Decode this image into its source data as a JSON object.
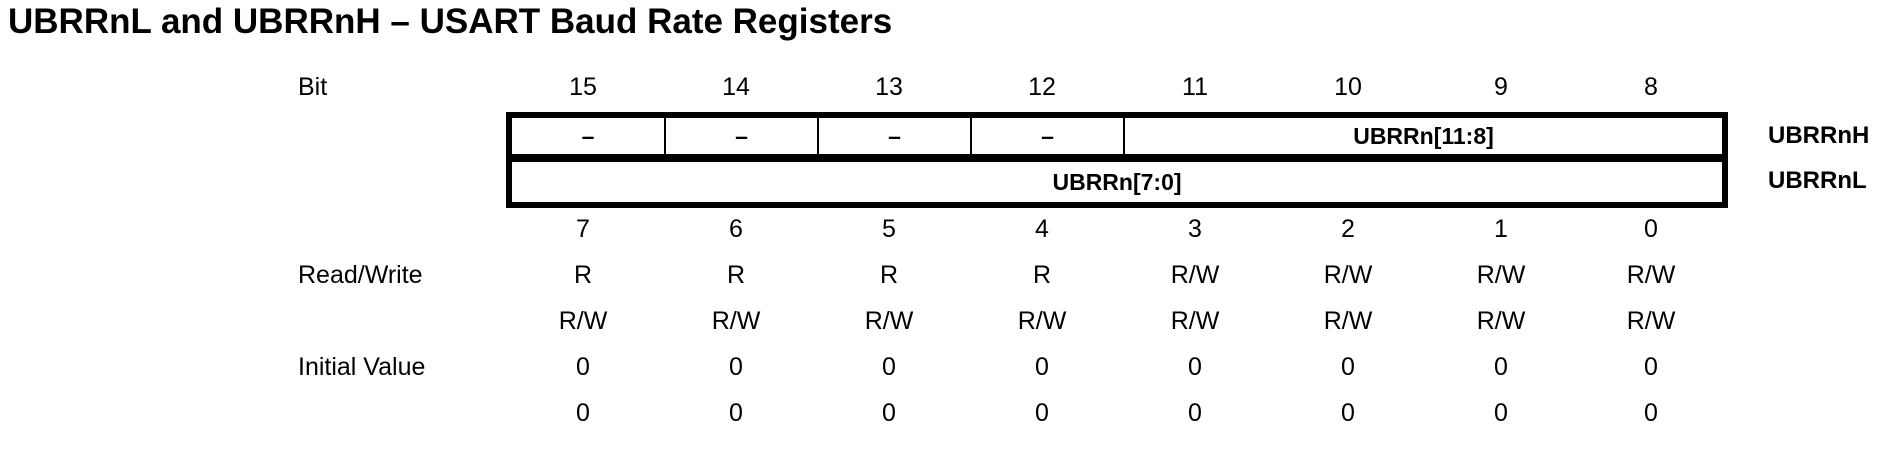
{
  "title": "UBRRnL and UBRRnH – USART Baud Rate Registers",
  "labels": {
    "bit": "Bit",
    "read_write": "Read/Write",
    "initial_value": "Initial Value"
  },
  "high_bits": [
    "15",
    "14",
    "13",
    "12",
    "11",
    "10",
    "9",
    "8"
  ],
  "low_bits": [
    "7",
    "6",
    "5",
    "4",
    "3",
    "2",
    "1",
    "0"
  ],
  "high_register": {
    "name": "UBRRnH",
    "fields": [
      "–",
      "–",
      "–",
      "–",
      "UBRRn[11:8]"
    ]
  },
  "low_register": {
    "name": "UBRRnL",
    "fields": [
      "UBRRn[7:0]"
    ]
  },
  "read_write_high": [
    "R",
    "R",
    "R",
    "R",
    "R/W",
    "R/W",
    "R/W",
    "R/W"
  ],
  "read_write_low": [
    "R/W",
    "R/W",
    "R/W",
    "R/W",
    "R/W",
    "R/W",
    "R/W",
    "R/W"
  ],
  "initial_high": [
    "0",
    "0",
    "0",
    "0",
    "0",
    "0",
    "0",
    "0"
  ],
  "initial_low": [
    "0",
    "0",
    "0",
    "0",
    "0",
    "0",
    "0",
    "0"
  ]
}
